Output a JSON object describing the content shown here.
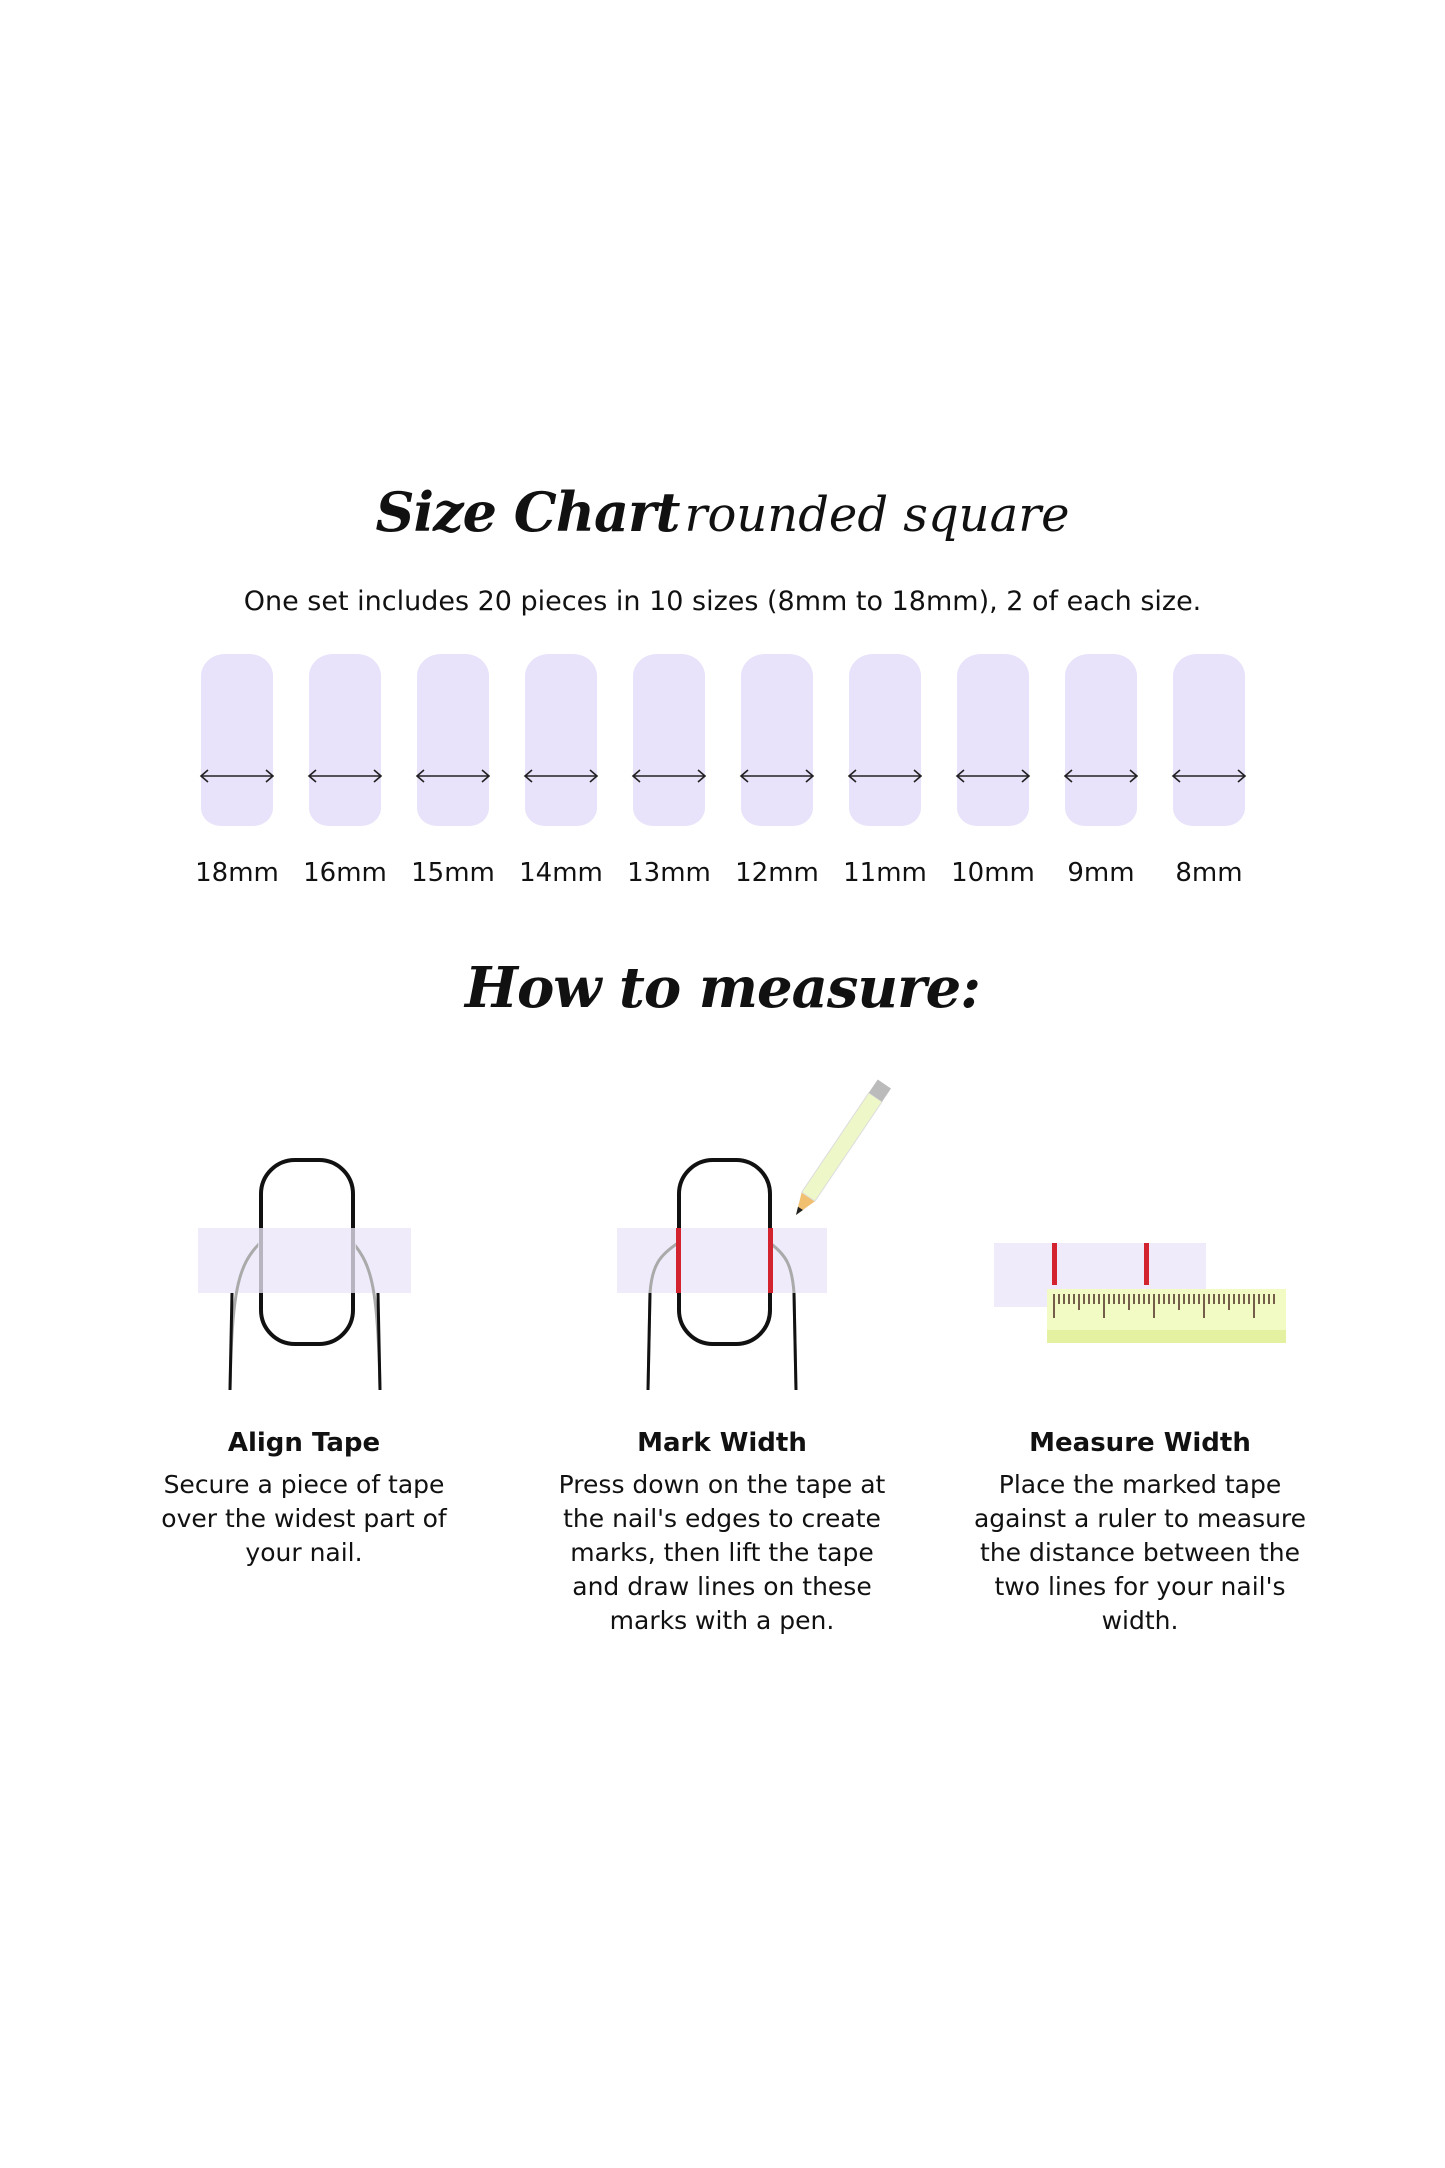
{
  "header": {
    "title_bold": "Size Chart",
    "title_light": "rounded square",
    "subtitle": "One set includes 20 pieces in 10 sizes (8mm to 18mm), 2 of each size."
  },
  "sizes": [
    "18mm",
    "16mm",
    "15mm",
    "14mm",
    "13mm",
    "12mm",
    "11mm",
    "10mm",
    "9mm",
    "8mm"
  ],
  "measure": {
    "title": "How to measure:",
    "steps": [
      {
        "title": "Align Tape",
        "text": "Secure a piece of tape over the widest part of your nail."
      },
      {
        "title": "Mark Width",
        "text": "Press down on the tape at the nail's edges to create marks, then lift the tape and draw lines on these marks with a pen."
      },
      {
        "title": "Measure Width",
        "text": "Place the marked tape against a ruler to measure the distance between the two lines for your nail's width."
      }
    ]
  },
  "colors": {
    "nail": "#e8e2fa",
    "tape": "#efebfb",
    "mark": "#d3232e",
    "ruler": "#f2fbc4"
  },
  "icons": [
    "double-arrow-icon",
    "pencil-icon",
    "ruler-icon",
    "finger-icon",
    "tape-icon"
  ]
}
